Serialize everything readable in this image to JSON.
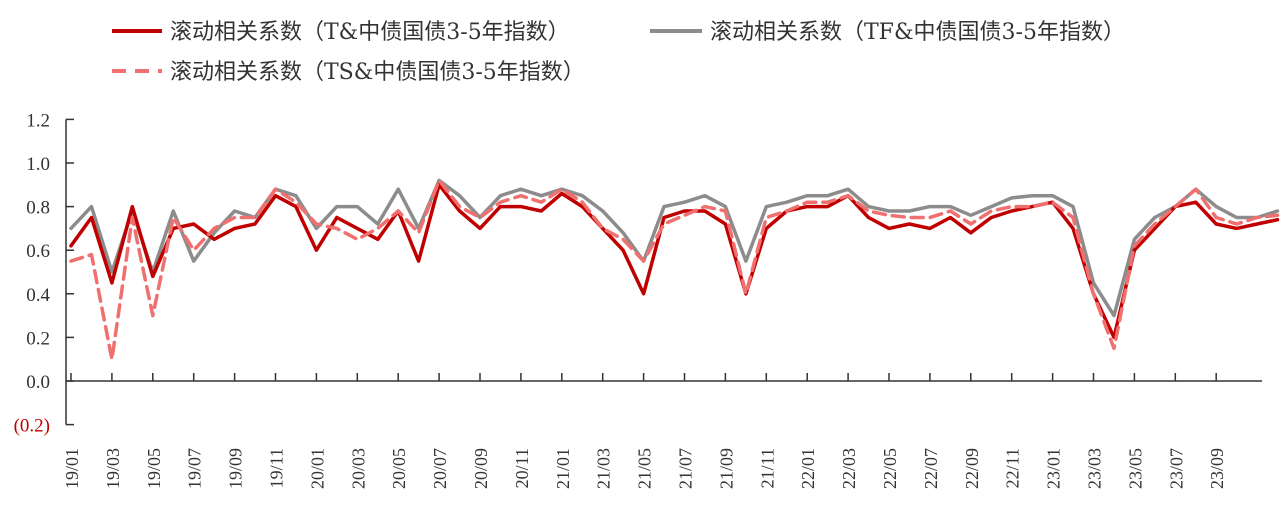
{
  "chart_data": {
    "type": "line",
    "title": "",
    "xlabel": "",
    "ylabel": "",
    "ylim": [
      -0.2,
      1.2
    ],
    "yticks": [
      -0.2,
      0.0,
      0.2,
      0.4,
      0.6,
      0.8,
      1.0,
      1.2
    ],
    "ytick_labels": [
      "(0.2)",
      "0.0",
      "0.2",
      "0.4",
      "0.6",
      "0.8",
      "1.0",
      "1.2"
    ],
    "xlim": [
      "2019-01",
      "2023-12"
    ],
    "x_tick_labels": [
      "19/01",
      "19/03",
      "19/05",
      "19/07",
      "19/09",
      "19/11",
      "20/01",
      "20/03",
      "20/05",
      "20/07",
      "20/09",
      "20/11",
      "21/01",
      "21/03",
      "21/05",
      "21/07",
      "21/09",
      "21/11",
      "22/01",
      "22/03",
      "22/05",
      "22/07",
      "22/09",
      "22/11",
      "23/01",
      "23/03",
      "23/05",
      "23/07",
      "23/09"
    ],
    "grid": false,
    "legend": "top",
    "x": [
      "2019-01",
      "2019-02",
      "2019-03",
      "2019-04",
      "2019-05",
      "2019-06",
      "2019-07",
      "2019-08",
      "2019-09",
      "2019-10",
      "2019-11",
      "2019-12",
      "2020-01",
      "2020-02",
      "2020-03",
      "2020-04",
      "2020-05",
      "2020-06",
      "2020-07",
      "2020-08",
      "2020-09",
      "2020-10",
      "2020-11",
      "2020-12",
      "2021-01",
      "2021-02",
      "2021-03",
      "2021-04",
      "2021-05",
      "2021-06",
      "2021-07",
      "2021-08",
      "2021-09",
      "2021-10",
      "2021-11",
      "2021-12",
      "2022-01",
      "2022-02",
      "2022-03",
      "2022-04",
      "2022-05",
      "2022-06",
      "2022-07",
      "2022-08",
      "2022-09",
      "2022-10",
      "2022-11",
      "2022-12",
      "2023-01",
      "2023-02",
      "2023-03",
      "2023-04",
      "2023-05",
      "2023-06",
      "2023-07",
      "2023-08",
      "2023-09",
      "2023-10",
      "2023-11",
      "2023-12"
    ],
    "series": [
      {
        "name": "滚动相关系数（T&中债国债3-5年指数）",
        "color": "#c00000",
        "dash": "solid",
        "values": [
          0.62,
          0.75,
          0.45,
          0.8,
          0.48,
          0.7,
          0.72,
          0.65,
          0.7,
          0.72,
          0.85,
          0.8,
          0.6,
          0.75,
          0.7,
          0.65,
          0.78,
          0.55,
          0.9,
          0.78,
          0.7,
          0.8,
          0.8,
          0.78,
          0.86,
          0.8,
          0.7,
          0.6,
          0.4,
          0.75,
          0.78,
          0.78,
          0.72,
          0.4,
          0.7,
          0.78,
          0.8,
          0.8,
          0.85,
          0.75,
          0.7,
          0.72,
          0.7,
          0.75,
          0.68,
          0.75,
          0.78,
          0.8,
          0.82,
          0.7,
          0.4,
          0.2,
          0.6,
          0.7,
          0.8,
          0.82,
          0.72,
          0.7,
          0.72,
          0.74
        ]
      },
      {
        "name": "滚动相关系数（TF&中债国债3-5年指数）",
        "color": "#8c8c8c",
        "dash": "solid",
        "values": [
          0.7,
          0.8,
          0.5,
          0.78,
          0.5,
          0.78,
          0.55,
          0.68,
          0.78,
          0.75,
          0.88,
          0.85,
          0.7,
          0.8,
          0.8,
          0.72,
          0.88,
          0.7,
          0.92,
          0.85,
          0.75,
          0.85,
          0.88,
          0.85,
          0.88,
          0.85,
          0.78,
          0.68,
          0.55,
          0.8,
          0.82,
          0.85,
          0.8,
          0.55,
          0.8,
          0.82,
          0.85,
          0.85,
          0.88,
          0.8,
          0.78,
          0.78,
          0.8,
          0.8,
          0.76,
          0.8,
          0.84,
          0.85,
          0.85,
          0.8,
          0.45,
          0.3,
          0.65,
          0.75,
          0.8,
          0.88,
          0.8,
          0.75,
          0.75,
          0.78
        ]
      },
      {
        "name": "滚动相关系数（TS&中债国债3-5年指数）",
        "color": "#f07070",
        "dash": "dashed",
        "values": [
          0.55,
          0.58,
          0.1,
          0.75,
          0.3,
          0.75,
          0.6,
          0.7,
          0.75,
          0.75,
          0.88,
          0.82,
          0.72,
          0.7,
          0.65,
          0.7,
          0.78,
          0.68,
          0.92,
          0.8,
          0.75,
          0.82,
          0.85,
          0.82,
          0.88,
          0.82,
          0.7,
          0.65,
          0.55,
          0.72,
          0.76,
          0.8,
          0.78,
          0.4,
          0.75,
          0.78,
          0.82,
          0.82,
          0.85,
          0.78,
          0.76,
          0.75,
          0.75,
          0.78,
          0.72,
          0.78,
          0.8,
          0.8,
          0.82,
          0.75,
          0.4,
          0.15,
          0.62,
          0.72,
          0.8,
          0.88,
          0.75,
          0.72,
          0.75,
          0.76
        ]
      }
    ]
  }
}
